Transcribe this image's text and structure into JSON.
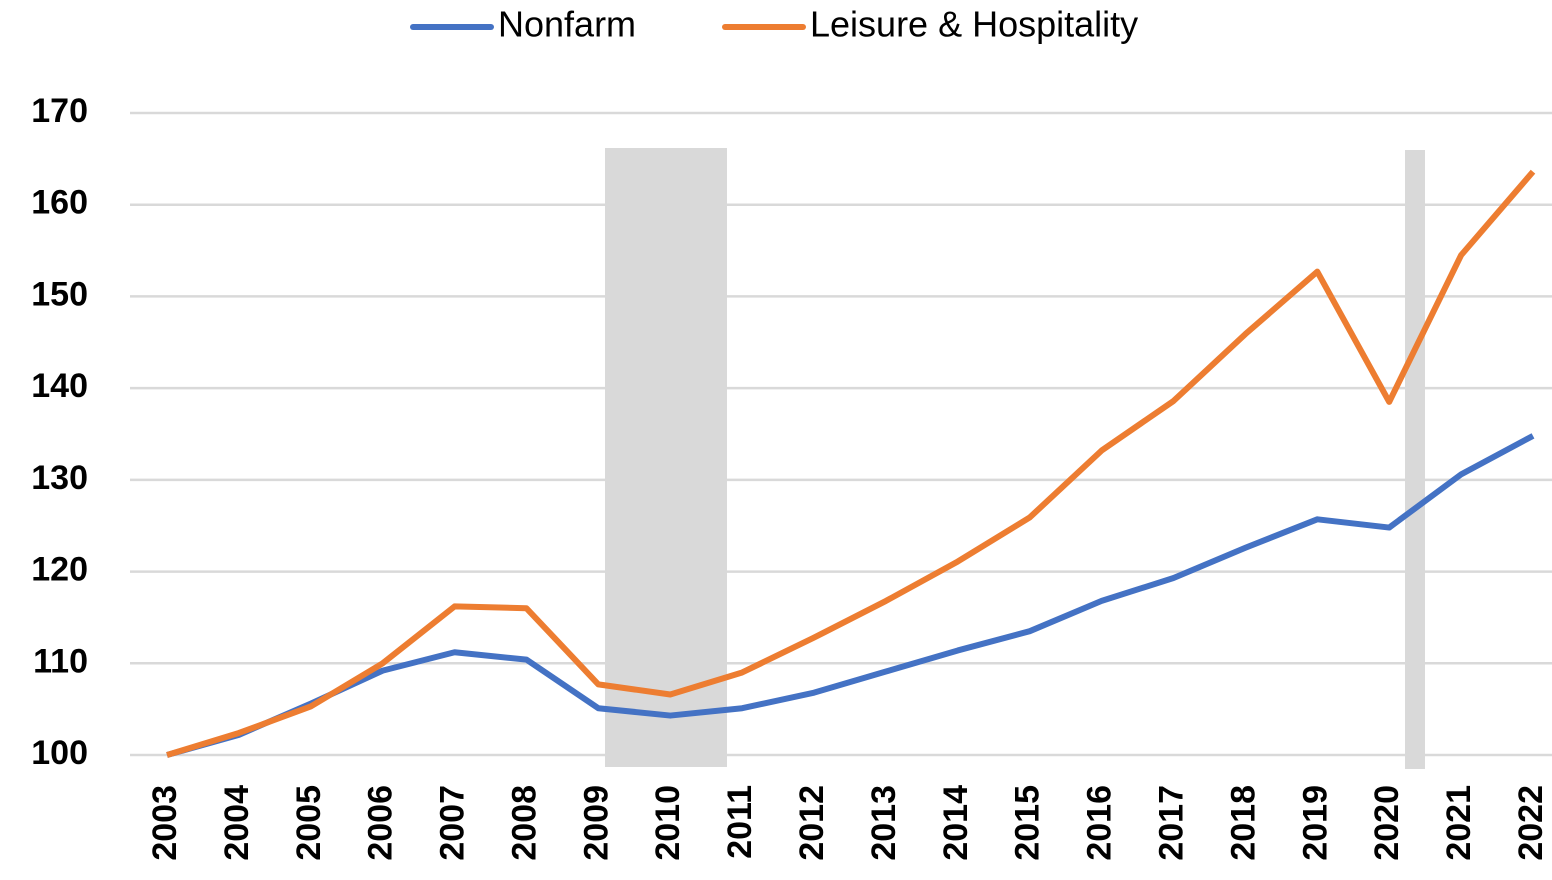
{
  "chart_data": {
    "type": "line",
    "categories": [
      "2003",
      "2004",
      "2005",
      "2006",
      "2007",
      "2008",
      "2009",
      "2010",
      "2011",
      "2012",
      "2013",
      "2014",
      "2015",
      "2016",
      "2017",
      "2018",
      "2019",
      "2020",
      "2021",
      "2022"
    ],
    "series": [
      {
        "name": "Nonfarm",
        "color": "#4472c4",
        "values": [
          100,
          102.2,
          105.6,
          109.2,
          111.2,
          110.4,
          105.1,
          104.3,
          105.1,
          106.8,
          109.1,
          111.4,
          113.5,
          116.8,
          119.3,
          122.6,
          125.7,
          124.8,
          130.6,
          134.8
        ]
      },
      {
        "name": "Leisure & Hospitality",
        "color": "#ed7d31",
        "values": [
          100,
          102.4,
          105.3,
          110,
          116.2,
          116,
          107.7,
          106.6,
          109,
          112.8,
          116.8,
          121.1,
          125.9,
          133.2,
          138.6,
          145.9,
          152.7,
          138.5,
          154.5,
          163.6
        ]
      }
    ],
    "ylim": [
      100,
      170
    ],
    "yticks": [
      100,
      110,
      120,
      130,
      140,
      150,
      160,
      170
    ],
    "grid": true,
    "legend": "top"
  }
}
